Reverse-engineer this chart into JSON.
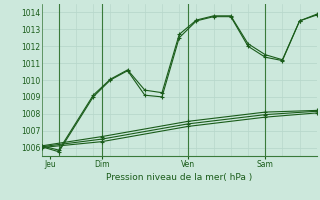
{
  "title": "Pression niveau de la mer( hPa )",
  "bg_color": "#cce8dc",
  "grid_color": "#b8d8cc",
  "line_color": "#1a5c1a",
  "ylim": [
    1005.5,
    1014.5
  ],
  "yticks": [
    1006,
    1007,
    1008,
    1009,
    1010,
    1011,
    1012,
    1013,
    1014
  ],
  "xlim": [
    0,
    16
  ],
  "day_labels": [
    "Jeu",
    "Dim",
    "Ven",
    "Sam"
  ],
  "day_positions": [
    0.5,
    3.5,
    8.5,
    13.0
  ],
  "vline_positions": [
    1.0,
    3.5,
    8.5,
    13.0
  ],
  "series1": {
    "x": [
      0,
      1,
      3,
      4,
      5,
      6,
      7,
      8,
      9,
      10,
      11,
      12,
      13,
      14,
      15,
      16
    ],
    "y": [
      1006.05,
      1005.75,
      1009.0,
      1010.0,
      1010.55,
      1009.1,
      1009.0,
      1012.5,
      1013.5,
      1013.75,
      1013.75,
      1012.0,
      1011.35,
      1011.15,
      1013.5,
      1013.85
    ]
  },
  "series2": {
    "x": [
      0,
      1,
      3,
      4,
      5,
      6,
      7,
      8,
      9,
      10,
      11,
      12,
      13,
      14,
      15,
      16
    ],
    "y": [
      1006.1,
      1005.85,
      1009.1,
      1010.05,
      1010.6,
      1009.4,
      1009.25,
      1012.7,
      1013.55,
      1013.8,
      1013.8,
      1012.15,
      1011.5,
      1011.2,
      1013.5,
      1013.9
    ]
  },
  "series3": {
    "x": [
      0,
      3.5,
      8.5,
      13.0,
      16
    ],
    "y": [
      1006.0,
      1006.35,
      1007.25,
      1007.8,
      1008.05
    ]
  },
  "series4": {
    "x": [
      0,
      3.5,
      8.5,
      13.0,
      16
    ],
    "y": [
      1006.05,
      1006.5,
      1007.4,
      1007.95,
      1008.15
    ]
  },
  "series5": {
    "x": [
      0,
      3.5,
      8.5,
      13.0,
      16
    ],
    "y": [
      1006.1,
      1006.65,
      1007.55,
      1008.1,
      1008.2
    ]
  }
}
